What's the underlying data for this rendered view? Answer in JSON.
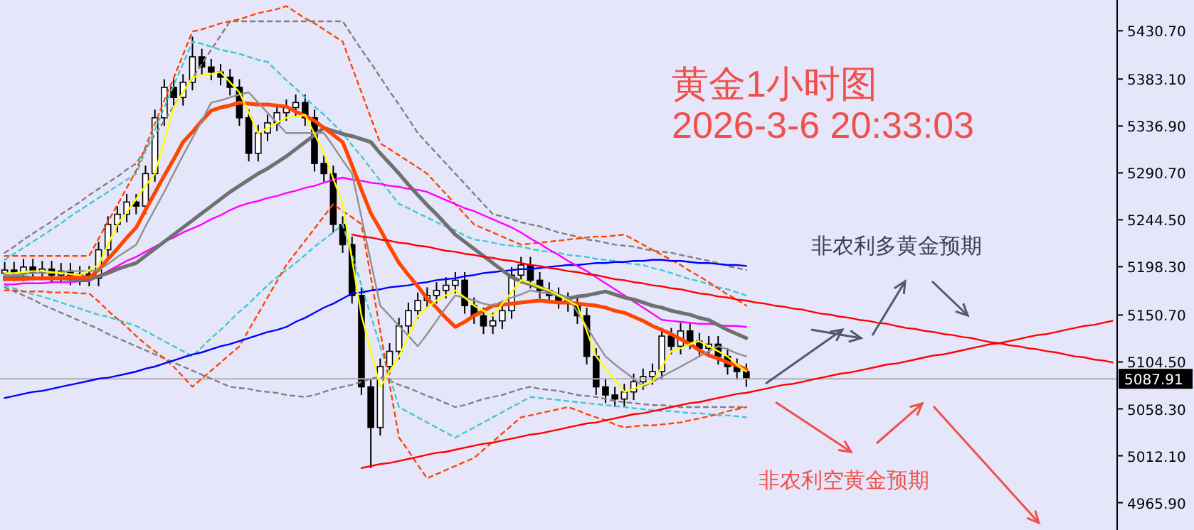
{
  "chart_data": {
    "type": "candlestick",
    "title": "黄金1小时图",
    "subtitle": "2026-3-6 20:33:03",
    "annotations": [
      "非农利多黄金预期",
      "非农利空黄金预期"
    ],
    "categories": [
      null,
      null,
      null,
      null,
      null,
      null,
      null,
      null,
      null,
      null,
      null,
      null,
      null,
      null,
      null,
      null,
      null,
      null,
      null,
      null,
      null,
      null,
      null,
      null,
      null,
      null,
      null,
      null,
      null,
      null,
      null,
      null,
      null,
      null,
      null,
      null,
      null,
      null,
      null,
      null,
      null,
      null,
      null,
      null,
      null,
      null,
      null,
      null,
      null,
      null,
      null,
      null,
      null,
      null,
      null,
      null,
      null,
      null,
      null,
      null,
      null,
      null,
      null,
      null,
      null,
      null,
      null,
      null,
      null,
      null,
      null,
      null,
      null,
      null,
      null,
      null,
      null,
      null,
      null,
      null,
      null,
      null,
      null,
      null,
      null,
      null,
      null,
      null,
      null,
      null,
      null,
      null,
      null,
      null,
      null,
      null,
      null,
      null,
      null,
      null,
      null,
      null,
      null,
      null,
      null,
      null,
      null,
      null,
      null,
      null,
      null,
      null,
      null,
      null,
      null,
      null,
      null,
      null,
      null
    ],
    "ohlc": [
      [
        5192,
        5203,
        5184,
        5195
      ],
      [
        5195,
        5203,
        5184,
        5192
      ],
      [
        5192,
        5206,
        5184,
        5198
      ],
      [
        5198,
        5206,
        5185,
        5193
      ],
      [
        5193,
        5204,
        5185,
        5196
      ],
      [
        5196,
        5204,
        5182,
        5190
      ],
      [
        5190,
        5202,
        5182,
        5194
      ],
      [
        5194,
        5202,
        5180,
        5188
      ],
      [
        5188,
        5199,
        5180,
        5191
      ],
      [
        5191,
        5199,
        5179,
        5187
      ],
      [
        5187,
        5223,
        5179,
        5215
      ],
      [
        5215,
        5248,
        5207,
        5240
      ],
      [
        5240,
        5258,
        5232,
        5250
      ],
      [
        5250,
        5270,
        5242,
        5262
      ],
      [
        5262,
        5270,
        5250,
        5258
      ],
      [
        5258,
        5298,
        5250,
        5290
      ],
      [
        5290,
        5353,
        5282,
        5345
      ],
      [
        5345,
        5383,
        5337,
        5375
      ],
      [
        5375,
        5383,
        5357,
        5365
      ],
      [
        5365,
        5388,
        5357,
        5380
      ],
      [
        5380,
        5425,
        5372,
        5405
      ],
      [
        5405,
        5413,
        5387,
        5395
      ],
      [
        5395,
        5403,
        5382,
        5390
      ],
      [
        5390,
        5398,
        5377,
        5385
      ],
      [
        5385,
        5393,
        5367,
        5375
      ],
      [
        5375,
        5383,
        5337,
        5345
      ],
      [
        5345,
        5353,
        5302,
        5310
      ],
      [
        5310,
        5338,
        5302,
        5330
      ],
      [
        5330,
        5348,
        5322,
        5340
      ],
      [
        5340,
        5358,
        5332,
        5350
      ],
      [
        5350,
        5363,
        5342,
        5355
      ],
      [
        5355,
        5368,
        5347,
        5360
      ],
      [
        5360,
        5368,
        5337,
        5345
      ],
      [
        5345,
        5353,
        5292,
        5300
      ],
      [
        5300,
        5308,
        5282,
        5290
      ],
      [
        5290,
        5298,
        5232,
        5240
      ],
      [
        5240,
        5248,
        5212,
        5220
      ],
      [
        5220,
        5228,
        5162,
        5170
      ],
      [
        5170,
        5178,
        5072,
        5080
      ],
      [
        5080,
        5088,
        5000,
        5040
      ],
      [
        5040,
        5108,
        5032,
        5100
      ],
      [
        5100,
        5123,
        5092,
        5115
      ],
      [
        5115,
        5148,
        5107,
        5140
      ],
      [
        5140,
        5163,
        5132,
        5155
      ],
      [
        5155,
        5173,
        5147,
        5165
      ],
      [
        5165,
        5178,
        5157,
        5170
      ],
      [
        5170,
        5183,
        5162,
        5175
      ],
      [
        5175,
        5188,
        5167,
        5180
      ],
      [
        5180,
        5193,
        5172,
        5185
      ],
      [
        5185,
        5193,
        5152,
        5160
      ],
      [
        5160,
        5168,
        5142,
        5150
      ],
      [
        5150,
        5158,
        5132,
        5140
      ],
      [
        5140,
        5153,
        5132,
        5145
      ],
      [
        5145,
        5163,
        5137,
        5155
      ],
      [
        5155,
        5198,
        5147,
        5190
      ],
      [
        5190,
        5208,
        5182,
        5200
      ],
      [
        5200,
        5208,
        5177,
        5185
      ],
      [
        5185,
        5193,
        5167,
        5175
      ],
      [
        5175,
        5183,
        5162,
        5170
      ],
      [
        5170,
        5178,
        5157,
        5165
      ],
      [
        5165,
        5173,
        5154,
        5162
      ],
      [
        5162,
        5170,
        5142,
        5150
      ],
      [
        5150,
        5158,
        5102,
        5110
      ],
      [
        5110,
        5118,
        5072,
        5080
      ],
      [
        5080,
        5088,
        5064,
        5072
      ],
      [
        5072,
        5080,
        5060,
        5068
      ],
      [
        5068,
        5083,
        5060,
        5075
      ],
      [
        5075,
        5093,
        5067,
        5085
      ],
      [
        5085,
        5098,
        5077,
        5090
      ],
      [
        5090,
        5103,
        5082,
        5095
      ],
      [
        5095,
        5138,
        5087,
        5130
      ],
      [
        5130,
        5138,
        5112,
        5120
      ],
      [
        5120,
        5143,
        5112,
        5135
      ],
      [
        5135,
        5143,
        5117,
        5125
      ],
      [
        5125,
        5133,
        5110,
        5118
      ],
      [
        5118,
        5130,
        5110,
        5122
      ],
      [
        5122,
        5130,
        5102,
        5110
      ],
      [
        5110,
        5118,
        5092,
        5100
      ],
      [
        5100,
        5108,
        5087,
        5095
      ],
      [
        5095,
        5103,
        5080,
        5088
      ],
      null,
      null,
      null,
      null,
      null,
      null,
      null,
      null,
      null,
      null,
      null,
      null,
      null,
      null,
      null,
      null,
      null,
      null,
      null,
      null,
      null,
      null,
      null,
      null,
      null,
      null,
      null,
      null,
      null,
      null,
      null,
      null,
      null,
      null,
      null,
      null,
      null,
      null,
      null
    ],
    "series": [
      {
        "type": "line",
        "color": "#808080",
        "line_style": "dashed",
        "values": [
          5212,
          5218,
          5225,
          5231,
          5237,
          5243,
          5250,
          5256,
          5262,
          5269,
          5275,
          5281,
          5287,
          5294,
          5300,
          5314,
          5328,
          5342,
          5356,
          5370,
          5384,
          5398,
          5412,
          5426,
          5440,
          5440,
          5440,
          5440,
          5440,
          5440,
          5440,
          5440,
          5440,
          5440,
          5440,
          5440,
          5440,
          5426,
          5412,
          5399,
          5385,
          5371,
          5358,
          5344,
          5330,
          5320,
          5310,
          5300,
          5290,
          5280,
          5270,
          5260,
          5250,
          5248,
          5245,
          5242,
          5240,
          5238,
          5235,
          5232,
          5230,
          5228,
          5225,
          5224,
          5222,
          5220,
          5219,
          5218,
          5216,
          5214,
          5213,
          5212,
          5210,
          5208,
          5206,
          5204,
          5202,
          5199,
          5197,
          5195,
          null,
          null,
          null,
          null,
          null,
          null,
          null,
          null,
          null,
          null,
          null,
          null,
          null,
          null,
          null,
          null,
          null,
          null,
          null,
          null,
          null,
          null,
          null,
          null,
          null,
          null,
          null,
          null,
          null,
          null,
          null,
          null,
          null,
          null,
          null,
          null,
          null,
          null,
          null
        ]
      },
      {
        "type": "line",
        "color": "#808080",
        "line_style": "dashed",
        "values": [
          5178,
          5174,
          5170,
          5166,
          5161,
          5157,
          5153,
          5149,
          5145,
          5141,
          5137,
          5132,
          5128,
          5124,
          5120,
          5116,
          5112,
          5108,
          5104,
          5100,
          5096,
          5092,
          5088,
          5084,
          5080,
          5079,
          5078,
          5076,
          5075,
          5074,
          5072,
          5071,
          5070,
          5072,
          5075,
          5078,
          5080,
          5082,
          5085,
          5088,
          5090,
          5086,
          5082,
          5079,
          5075,
          5071,
          5068,
          5064,
          5060,
          5062,
          5065,
          5068,
          5070,
          5072,
          5075,
          5078,
          5080,
          5078,
          5077,
          5076,
          5074,
          5072,
          5071,
          5070,
          5068,
          5066,
          5065,
          5064,
          5063,
          5062,
          5062,
          5061,
          5060,
          5060,
          5060,
          5060,
          5060,
          5060,
          5060,
          5060,
          null,
          null,
          null,
          null,
          null,
          null,
          null,
          null,
          null,
          null,
          null,
          null,
          null,
          null,
          null,
          null,
          null,
          null,
          null,
          null,
          null,
          null,
          null,
          null,
          null,
          null,
          null,
          null,
          null,
          null,
          null,
          null,
          null,
          null,
          null,
          null,
          null,
          null,
          null
        ]
      },
      {
        "type": "line",
        "color": "#40c8d0",
        "line_style": "dashed",
        "values": [
          5205,
          5211,
          5217,
          5223,
          5229,
          5235,
          5241,
          5248,
          5254,
          5260,
          5266,
          5272,
          5278,
          5284,
          5290,
          5312,
          5333,
          5355,
          5377,
          5398,
          5420,
          5418,
          5415,
          5412,
          5410,
          5408,
          5405,
          5402,
          5400,
          5391,
          5382,
          5374,
          5365,
          5356,
          5348,
          5339,
          5330,
          5318,
          5307,
          5295,
          5283,
          5272,
          5260,
          5256,
          5251,
          5247,
          5242,
          5238,
          5234,
          5229,
          5225,
          5224,
          5222,
          5220,
          5219,
          5218,
          5216,
          5214,
          5213,
          5212,
          5210,
          5209,
          5208,
          5206,
          5205,
          5204,
          5202,
          5201,
          5200,
          5197,
          5195,
          5192,
          5189,
          5186,
          5184,
          5181,
          5178,
          5176,
          5173,
          5170,
          null,
          null,
          null,
          null,
          null,
          null,
          null,
          null,
          null,
          null,
          null,
          null,
          null,
          null,
          null,
          null,
          null,
          null,
          null,
          null,
          null,
          null,
          null,
          null,
          null,
          null,
          null,
          null,
          null,
          null,
          null,
          null,
          null,
          null,
          null,
          null,
          null,
          null,
          null
        ]
      },
      {
        "type": "line",
        "color": "#40c8d0",
        "line_style": "dashed",
        "values": [
          5180,
          5177,
          5174,
          5171,
          5169,
          5166,
          5163,
          5160,
          5157,
          5154,
          5151,
          5149,
          5146,
          5143,
          5140,
          5135,
          5130,
          5125,
          5120,
          5115,
          5110,
          5119,
          5128,
          5136,
          5145,
          5154,
          5162,
          5171,
          5180,
          5188,
          5195,
          5202,
          5210,
          5218,
          5225,
          5232,
          5240,
          5210,
          5180,
          5150,
          5120,
          5090,
          5060,
          5055,
          5050,
          5045,
          5040,
          5035,
          5030,
          5035,
          5040,
          5045,
          5050,
          5055,
          5060,
          5065,
          5070,
          5069,
          5068,
          5067,
          5066,
          5065,
          5064,
          5063,
          5062,
          5061,
          5060,
          5059,
          5058,
          5057,
          5056,
          5056,
          5055,
          5054,
          5054,
          5053,
          5052,
          5052,
          5051,
          5050,
          null,
          null,
          null,
          null,
          null,
          null,
          null,
          null,
          null,
          null,
          null,
          null,
          null,
          null,
          null,
          null,
          null,
          null,
          null,
          null,
          null,
          null,
          null,
          null,
          null,
          null,
          null,
          null,
          null,
          null,
          null,
          null,
          null,
          null,
          null,
          null,
          null,
          null,
          null
        ]
      },
      {
        "type": "line",
        "color": "#ff4500",
        "line_style": "dashed",
        "values": [
          5209,
          5209,
          5209,
          5209,
          5209,
          5209,
          5209,
          5209,
          5209,
          5209,
          5226,
          5243,
          5259,
          5276,
          5293,
          5316,
          5339,
          5362,
          5384,
          5407,
          5430,
          5432,
          5435,
          5438,
          5440,
          5442,
          5445,
          5448,
          5450,
          5452,
          5455,
          5449,
          5443,
          5438,
          5432,
          5426,
          5420,
          5395,
          5370,
          5345,
          5320,
          5314,
          5308,
          5302,
          5296,
          5290,
          5280,
          5270,
          5260,
          5250,
          5240,
          5236,
          5232,
          5228,
          5224,
          5220,
          5221,
          5222,
          5223,
          5224,
          5225,
          5226,
          5227,
          5228,
          5228,
          5229,
          5230,
          5225,
          5220,
          5215,
          5210,
          5205,
          5200,
          5194,
          5189,
          5183,
          5177,
          5171,
          5166,
          5160,
          null,
          null,
          null,
          null,
          null,
          null,
          null,
          null,
          null,
          null,
          null,
          null,
          null,
          null,
          null,
          null,
          null,
          null,
          null,
          null,
          null,
          null,
          null,
          null,
          null,
          null,
          null,
          null,
          null,
          null,
          null,
          null,
          null,
          null,
          null,
          null,
          null,
          null,
          null
        ]
      },
      {
        "type": "line",
        "color": "#ff4500",
        "line_style": "dashed",
        "values": [
          5175,
          5175,
          5174,
          5174,
          5174,
          5173,
          5173,
          5173,
          5172,
          5172,
          5164,
          5155,
          5147,
          5139,
          5130,
          5122,
          5115,
          5108,
          5100,
          5090,
          5080,
          5088,
          5096,
          5104,
          5112,
          5120,
          5136,
          5152,
          5168,
          5184,
          5200,
          5212,
          5224,
          5236,
          5248,
          5260,
          5253,
          5247,
          5240,
          5188,
          5135,
          5082,
          5030,
          5017,
          5003,
          4990,
          4994,
          4998,
          5002,
          5006,
          5010,
          5018,
          5026,
          5034,
          5042,
          5050,
          5052,
          5054,
          5056,
          5058,
          5060,
          5057,
          5053,
          5050,
          5047,
          5043,
          5040,
          5041,
          5042,
          5042,
          5043,
          5044,
          5045,
          5047,
          5049,
          5051,
          5053,
          5056,
          5058,
          5060,
          null,
          null,
          null,
          null,
          null,
          null,
          null,
          null,
          null,
          null,
          null,
          null,
          null,
          null,
          null,
          null,
          null,
          null,
          null,
          null,
          null,
          null,
          null,
          null,
          null,
          null,
          null,
          null,
          null,
          null,
          null,
          null,
          null,
          null,
          null,
          null,
          null,
          null,
          null
        ]
      },
      {
        "type": "line",
        "color": "#0000ff",
        "line_style": "solid",
        "values": [
          5069,
          5071,
          5073,
          5075,
          5076,
          5078,
          5080,
          5082,
          5084,
          5086,
          5088,
          5089,
          5091,
          5093,
          5095,
          5098,
          5100,
          5103,
          5106,
          5109,
          5112,
          5114,
          5117,
          5120,
          5122,
          5125,
          5128,
          5131,
          5134,
          5136,
          5139,
          5144,
          5148,
          5153,
          5158,
          5162,
          5167,
          5172,
          5173,
          5175,
          5176,
          5178,
          5179,
          5180,
          5182,
          5183,
          5185,
          5186,
          5187,
          5189,
          5190,
          5192,
          5193,
          5194,
          5195,
          5196,
          5196,
          5197,
          5198,
          5199,
          5200,
          5200,
          5201,
          5202,
          5202,
          5203,
          5203,
          5204,
          5204,
          5205,
          5205,
          5204,
          5204,
          5203,
          5202,
          5202,
          5201,
          5200,
          5200,
          5199,
          null,
          null,
          null,
          null,
          null,
          null,
          null,
          null,
          null,
          null,
          null,
          null,
          null,
          null,
          null,
          null,
          null,
          null,
          null,
          null,
          null,
          null,
          null,
          null,
          null,
          null,
          null,
          null,
          null,
          null,
          null,
          null,
          null,
          null,
          null,
          null,
          null,
          null,
          null
        ]
      },
      {
        "type": "line",
        "color": "#ff00ff",
        "line_style": "solid",
        "values": [
          5181,
          5181,
          5182,
          5182,
          5182,
          5183,
          5183,
          5183,
          5184,
          5184,
          5189,
          5194,
          5199,
          5204,
          5208,
          5213,
          5218,
          5223,
          5227,
          5232,
          5236,
          5240,
          5245,
          5249,
          5254,
          5258,
          5261,
          5263,
          5266,
          5268,
          5271,
          5273,
          5276,
          5278,
          5281,
          5284,
          5286,
          5284,
          5283,
          5281,
          5280,
          5278,
          5277,
          5275,
          5274,
          5272,
          5268,
          5264,
          5260,
          5256,
          5253,
          5249,
          5245,
          5241,
          5237,
          5232,
          5226,
          5221,
          5215,
          5210,
          5204,
          5199,
          5194,
          5188,
          5182,
          5176,
          5170,
          5164,
          5158,
          5152,
          5146,
          5145,
          5144,
          5143,
          5142,
          5142,
          5141,
          5140,
          5140,
          5139,
          null,
          null,
          null,
          null,
          null,
          null,
          null,
          null,
          null,
          null,
          null,
          null,
          null,
          null,
          null,
          null,
          null,
          null,
          null,
          null,
          null,
          null,
          null,
          null,
          null,
          null,
          null,
          null,
          null,
          null,
          null,
          null,
          null,
          null,
          null,
          null,
          null,
          null,
          null
        ]
      },
      {
        "type": "line",
        "color": "#707070",
        "line_style": "solid",
        "values": [
          5188,
          5188,
          5188,
          5187,
          5187,
          5187,
          5187,
          5186,
          5186,
          5186,
          5189,
          5192,
          5196,
          5199,
          5202,
          5209,
          5216,
          5223,
          5230,
          5237,
          5244,
          5251,
          5258,
          5265,
          5272,
          5278,
          5284,
          5290,
          5295,
          5301,
          5307,
          5314,
          5321,
          5328,
          5335,
          5332,
          5329,
          5327,
          5324,
          5321,
          5310,
          5300,
          5290,
          5279,
          5269,
          5259,
          5250,
          5240,
          5230,
          5223,
          5216,
          5209,
          5202,
          5195,
          5188,
          5184,
          5181,
          5178,
          5174,
          5170,
          5167,
          5169,
          5170,
          5172,
          5174,
          5171,
          5168,
          5166,
          5163,
          5160,
          5158,
          5155,
          5153,
          5151,
          5148,
          5146,
          5141,
          5136,
          5132,
          5128,
          null,
          null,
          null,
          null,
          null,
          null,
          null,
          null,
          null,
          null,
          null,
          null,
          null,
          null,
          null,
          null,
          null,
          null,
          null,
          null,
          null,
          null,
          null,
          null,
          null,
          null,
          null,
          null,
          null,
          null,
          null,
          null,
          null,
          null,
          null,
          null,
          null,
          null,
          null
        ]
      },
      {
        "type": "line",
        "color": "#ff4500",
        "line_style": "solid",
        "values": [
          5186,
          5186,
          5186,
          5187,
          5187,
          5187,
          5187,
          5188,
          5188,
          5188,
          5195,
          5206,
          5216,
          5227,
          5237,
          5254,
          5271,
          5288,
          5304,
          5321,
          5331,
          5342,
          5352,
          5355,
          5357,
          5360,
          5359,
          5358,
          5358,
          5357,
          5356,
          5351,
          5347,
          5342,
          5335,
          5328,
          5321,
          5298,
          5274,
          5251,
          5235,
          5218,
          5202,
          5190,
          5179,
          5167,
          5158,
          5148,
          5139,
          5144,
          5150,
          5155,
          5160,
          5161,
          5162,
          5163,
          5164,
          5165,
          5164,
          5163,
          5163,
          5162,
          5161,
          5160,
          5158,
          5155,
          5153,
          5149,
          5145,
          5140,
          5136,
          5132,
          5127,
          5122,
          5116,
          5111,
          5108,
          5104,
          5101,
          5097,
          null,
          null,
          null,
          null,
          null,
          null,
          null,
          null,
          null,
          null,
          null,
          null,
          null,
          null,
          null,
          null,
          null,
          null,
          null,
          null,
          null,
          null,
          null,
          null,
          null,
          null,
          null,
          null,
          null,
          null,
          null,
          null,
          null,
          null,
          null,
          null,
          null,
          null,
          null
        ]
      },
      {
        "type": "line",
        "color": "#909090",
        "line_style": "solid",
        "values": [
          5190,
          5190,
          5191,
          5192,
          5192,
          5192,
          5193,
          5194,
          5194,
          5194,
          5195,
          5201,
          5208,
          5214,
          5220,
          5238,
          5255,
          5272,
          5290,
          5308,
          5325,
          5342,
          5360,
          5362,
          5365,
          5368,
          5370,
          5360,
          5350,
          5340,
          5330,
          5330,
          5330,
          5330,
          5330,
          5317,
          5303,
          5290,
          5247,
          5203,
          5160,
          5150,
          5140,
          5130,
          5120,
          5132,
          5145,
          5158,
          5170,
          5168,
          5165,
          5162,
          5160,
          5164,
          5168,
          5171,
          5175,
          5173,
          5172,
          5170,
          5168,
          5154,
          5139,
          5124,
          5110,
          5102,
          5095,
          5088,
          5080,
          5085,
          5090,
          5095,
          5100,
          5105,
          5110,
          5115,
          5120,
          5117,
          5113,
          5110,
          null,
          null,
          null,
          null,
          null,
          null,
          null,
          null,
          null,
          null,
          null,
          null,
          null,
          null,
          null,
          null,
          null,
          null,
          null,
          null,
          null,
          null,
          null,
          null,
          null,
          null,
          null,
          null,
          null,
          null,
          null,
          null,
          null,
          null,
          null,
          null,
          null,
          null,
          null
        ]
      },
      {
        "type": "line",
        "color": "#ffff00",
        "line_style": "solid",
        "values": [
          5192,
          5192,
          5193,
          5194,
          5194,
          5193,
          5192,
          5191,
          5190,
          5195,
          5200,
          5220,
          5240,
          5252,
          5265,
          5278,
          5290,
          5322,
          5355,
          5370,
          5385,
          5387,
          5388,
          5390,
          5380,
          5370,
          5350,
          5330,
          5335,
          5340,
          5345,
          5346,
          5348,
          5329,
          5310,
          5285,
          5260,
          5205,
          5150,
          5115,
          5080,
          5095,
          5110,
          5130,
          5150,
          5158,
          5165,
          5170,
          5175,
          5168,
          5160,
          5155,
          5150,
          5162,
          5173,
          5185,
          5182,
          5178,
          5175,
          5170,
          5165,
          5160,
          5135,
          5110,
          5098,
          5087,
          5075,
          5078,
          5082,
          5085,
          5100,
          5115,
          5118,
          5122,
          5125,
          5120,
          5115,
          5110,
          5102,
          5095,
          null,
          null,
          null,
          null,
          null,
          null,
          null,
          null,
          null,
          null,
          null,
          null,
          null,
          null,
          null,
          null,
          null,
          null,
          null,
          null,
          null,
          null,
          null,
          null,
          null,
          null,
          null,
          null,
          null,
          null,
          null,
          null,
          null,
          null,
          null,
          null,
          null,
          null,
          null
        ]
      },
      {
        "type": "line",
        "color": "#ff0000",
        "line_style": "solid",
        "values": [
          null,
          null,
          null,
          null,
          null,
          null,
          null,
          null,
          null,
          null,
          null,
          null,
          null,
          null,
          null,
          null,
          null,
          null,
          null,
          null,
          null,
          null,
          null,
          null,
          null,
          null,
          null,
          null,
          null,
          null,
          null,
          null,
          null,
          null,
          null,
          null,
          null,
          5230,
          5228,
          5227,
          5225,
          5224,
          5222,
          5221,
          5219,
          5218,
          5216,
          5214,
          5213,
          5211,
          5210,
          5208,
          5207,
          5205,
          5204,
          5202,
          5200,
          5199,
          5197,
          5196,
          5194,
          5193,
          5191,
          5190,
          5188,
          5186,
          5185,
          5183,
          5182,
          5180,
          5179,
          5177,
          5176,
          5174,
          5172,
          5171,
          5169,
          5168,
          5166,
          5165,
          5163,
          5162,
          5160,
          5159,
          5157,
          5156,
          5154,
          5152,
          5151,
          5149,
          5148,
          5146,
          5145,
          5143,
          5142,
          5140,
          5138,
          5137,
          5135,
          5134,
          5132,
          5131,
          5129,
          5128,
          5126,
          5124,
          5123,
          5121,
          5120,
          5118,
          5117,
          5115,
          5114,
          5112,
          5110,
          5109,
          5107,
          5106,
          5104
        ]
      },
      {
        "type": "line",
        "color": "#ff0000",
        "line_style": "solid",
        "values": [
          null,
          null,
          null,
          null,
          null,
          null,
          null,
          null,
          null,
          null,
          null,
          null,
          null,
          null,
          null,
          null,
          null,
          null,
          null,
          null,
          null,
          null,
          null,
          null,
          null,
          null,
          null,
          null,
          null,
          null,
          null,
          null,
          null,
          null,
          null,
          null,
          null,
          null,
          5000,
          5002,
          5004,
          5005,
          5007,
          5009,
          5011,
          5013,
          5015,
          5016,
          5018,
          5020,
          5022,
          5024,
          5025,
          5027,
          5029,
          5031,
          5033,
          5034,
          5036,
          5038,
          5040,
          5042,
          5044,
          5045,
          5047,
          5049,
          5051,
          5053,
          5054,
          5056,
          5058,
          5060,
          5062,
          5064,
          5065,
          5067,
          5069,
          5071,
          5073,
          5074,
          5076,
          5078,
          5080,
          5082,
          5083,
          5085,
          5087,
          5089,
          5091,
          5093,
          5094,
          5096,
          5098,
          5100,
          5102,
          5103,
          5105,
          5107,
          5109,
          5111,
          5112,
          5114,
          5116,
          5118,
          5120,
          5122,
          5123,
          5125,
          5127,
          5129,
          5131,
          5132,
          5134,
          5136,
          5138,
          5140,
          5141,
          5143,
          5145
        ]
      }
    ],
    "ref_lines": [
      {
        "axis": "y",
        "value": 5087.91,
        "label": "5087.91",
        "color": "#b0b0b0"
      }
    ],
    "ylim": [
      4939,
      5461
    ],
    "yticks": [
      {
        "value": 5430.7,
        "label": "5430.70"
      },
      {
        "value": 5383.1,
        "label": "5383.10"
      },
      {
        "value": 5336.9,
        "label": "5336.90"
      },
      {
        "value": 5290.7,
        "label": "5290.70"
      },
      {
        "value": 5244.5,
        "label": "5244.50"
      },
      {
        "value": 5198.3,
        "label": "5198.30"
      },
      {
        "value": 5150.7,
        "label": "5150.70"
      },
      {
        "value": 5104.5,
        "label": "5104.50"
      },
      {
        "value": 5058.3,
        "label": "5058.30"
      },
      {
        "value": 5012.1,
        "label": "5012.10"
      },
      {
        "value": 4965.9,
        "label": "4965.90"
      }
    ],
    "tick_labels": "y"
  }
}
